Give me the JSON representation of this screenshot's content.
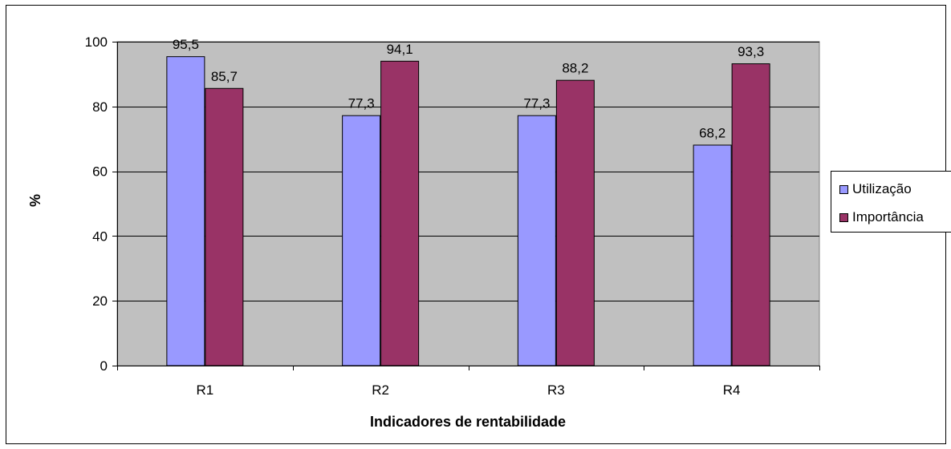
{
  "chart_data": {
    "type": "bar",
    "categories": [
      "R1",
      "R2",
      "R3",
      "R4"
    ],
    "series": [
      {
        "name": "Utilização",
        "values": [
          95.5,
          77.3,
          77.3,
          68.2
        ],
        "labels": [
          "95,5",
          "77,3",
          "77,3",
          "68,2"
        ],
        "color": "#9999ff"
      },
      {
        "name": "Importância",
        "values": [
          85.7,
          94.1,
          88.2,
          93.3
        ],
        "labels": [
          "85,7",
          "94,1",
          "88,2",
          "93,3"
        ],
        "color": "#993366"
      }
    ],
    "ylim": [
      0,
      100
    ],
    "yticks": [
      0,
      20,
      40,
      60,
      80,
      100
    ],
    "xlabel": "Indicadores de rentabilidade",
    "ylabel": "%",
    "plot_background": "#c0c0c0",
    "grid": true,
    "legend_position": "right"
  }
}
